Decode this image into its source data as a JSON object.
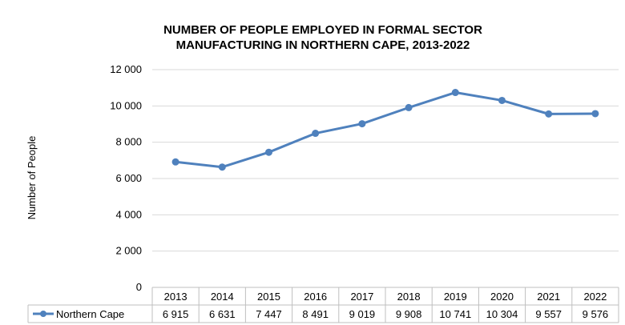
{
  "chart_data": {
    "type": "line",
    "title_lines": [
      "NUMBER OF PEOPLE EMPLOYED IN FORMAL SECTOR",
      "MANUFACTURING IN NORTHERN CAPE, 2013-2022"
    ],
    "ylabel": "Number of People",
    "xlabel": "",
    "ylim": [
      0,
      12000
    ],
    "y_ticks": [
      0,
      2000,
      4000,
      6000,
      8000,
      10000,
      12000
    ],
    "y_tick_labels": [
      "0",
      "2 000",
      "4 000",
      "6 000",
      "8 000",
      "10 000",
      "12 000"
    ],
    "grid": true,
    "categories": [
      "2013",
      "2014",
      "2015",
      "2016",
      "2017",
      "2018",
      "2019",
      "2020",
      "2021",
      "2022"
    ],
    "series": [
      {
        "name": "Northern Cape",
        "color": "#4F81BD",
        "values": [
          6915,
          6631,
          7447,
          8491,
          9019,
          9908,
          10741,
          10304,
          9557,
          9576
        ],
        "value_labels": [
          "6 915",
          "6 631",
          "7 447",
          "8 491",
          "9 019",
          "9 908",
          "10 741",
          "10 304",
          "9 557",
          "9 576"
        ]
      }
    ],
    "data_table": true
  }
}
